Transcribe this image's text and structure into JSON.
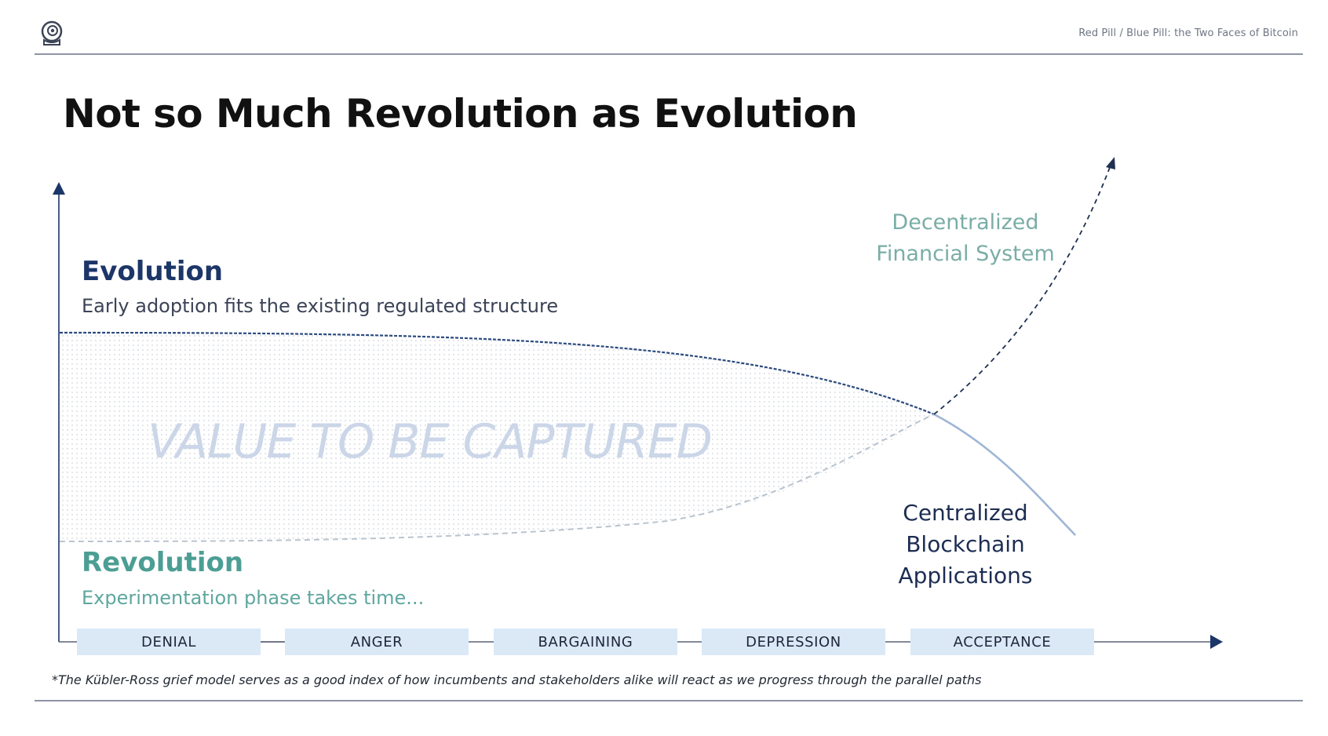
{
  "header": {
    "logo_icon": "astronaut-helmet-icon",
    "deck_title": "Red Pill / Blue Pill: the Two Faces of Bitcoin"
  },
  "slide": {
    "title": "Not so Much Revolution as Evolution"
  },
  "diagram": {
    "evolution": {
      "heading": "Evolution",
      "subtitle": "Early adoption fits the existing regulated structure"
    },
    "revolution": {
      "heading": "Revolution",
      "subtitle": "Experimentation phase takes time..."
    },
    "decentralized_label": "Decentralized Financial System",
    "centralized_label": "Centralized Blockchain Applications",
    "watermark": "VALUE TO BE CAPTURED",
    "stages": [
      "DENIAL",
      "ANGER",
      "BARGAINING",
      "DEPRESSION",
      "ACCEPTANCE"
    ]
  },
  "footnote": "*The Kübler-Ross grief model serves as a good index of how incumbents and stakeholders alike will react as we progress through the parallel paths",
  "colors": {
    "evolution": "#1c3668",
    "revolution": "#4c9e94",
    "stage_bg": "#dbe9f7",
    "watermark": "#cbd6e8"
  }
}
